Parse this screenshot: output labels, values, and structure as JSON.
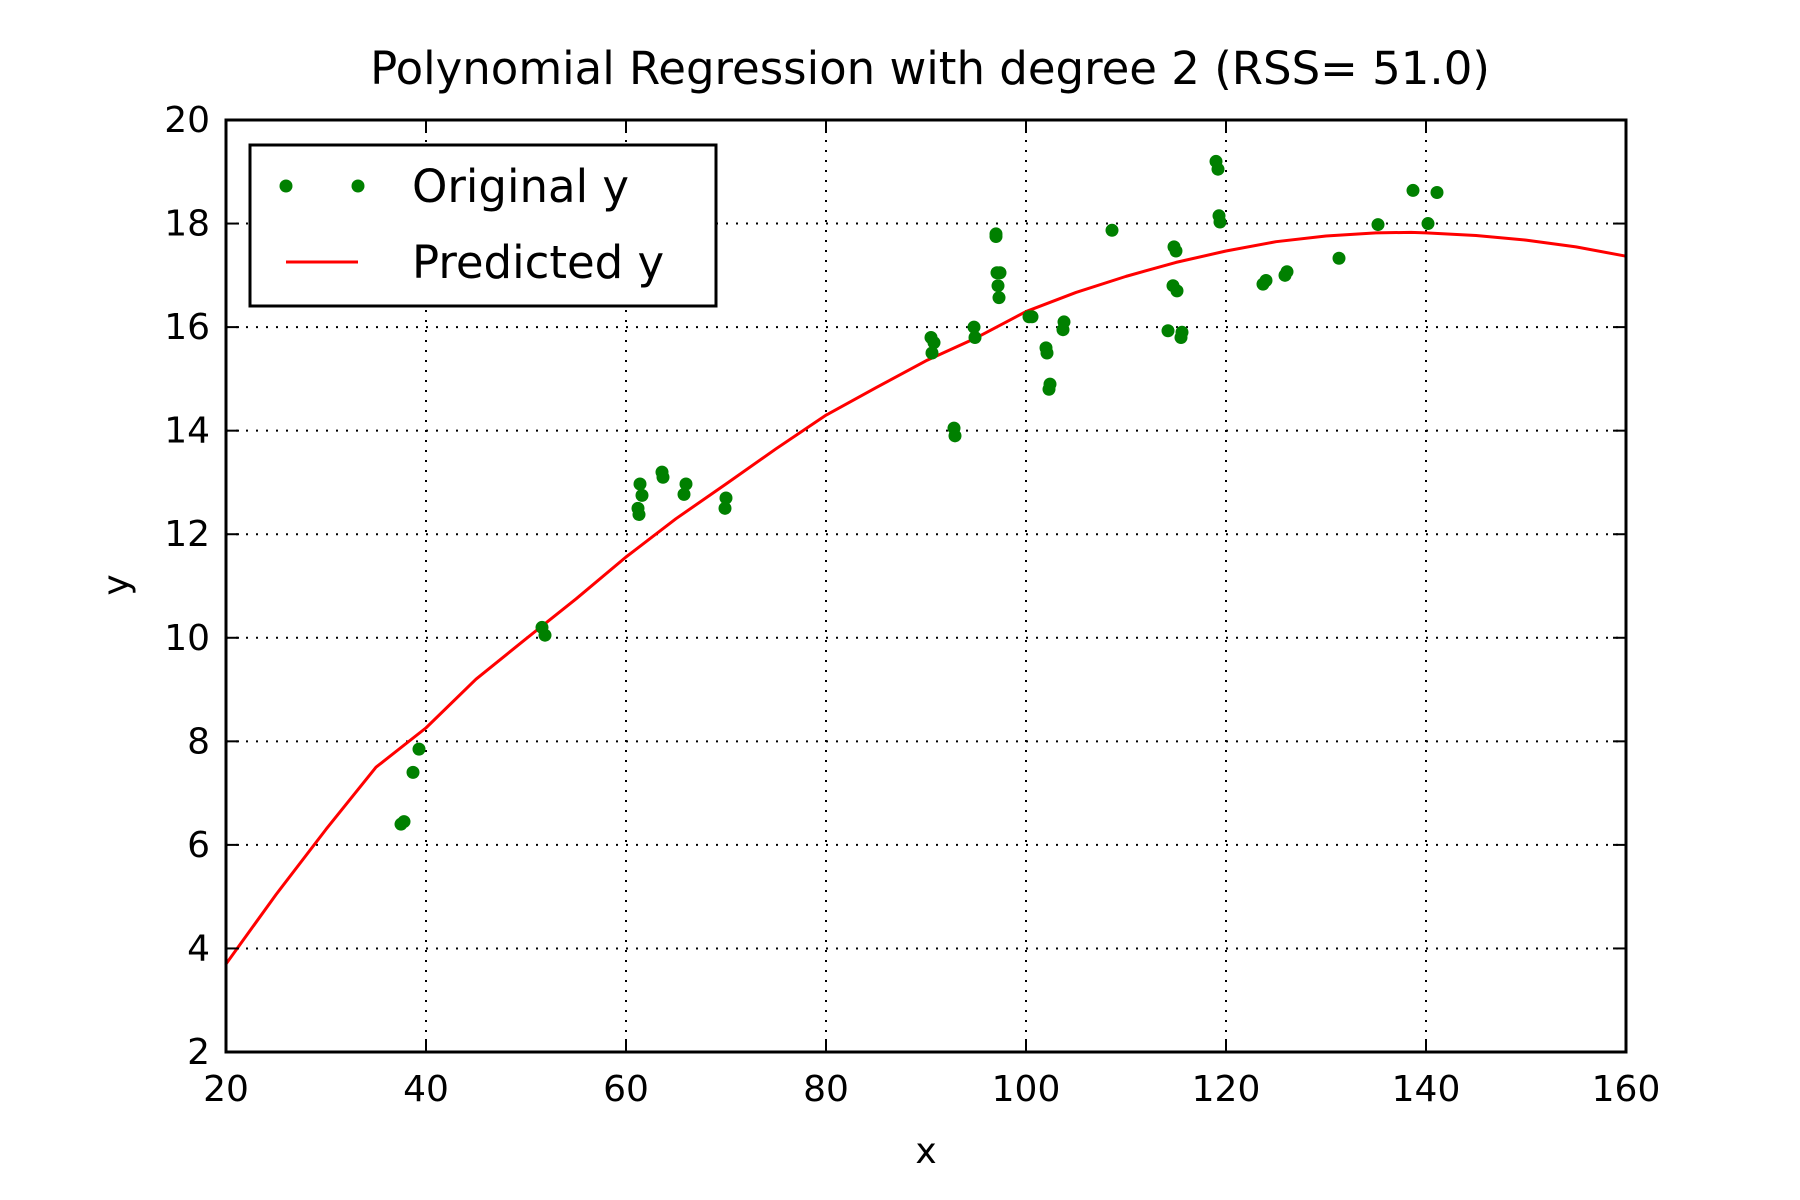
{
  "chart_data": {
    "type": "scatter",
    "title": "Polynomial Regression with degree 2 (RSS= 51.0)",
    "xlabel": "x",
    "ylabel": "y",
    "xlim": [
      20,
      160
    ],
    "ylim": [
      2,
      20
    ],
    "xticks": [
      "20",
      "40",
      "60",
      "80",
      "100",
      "120",
      "140",
      "160"
    ],
    "yticks": [
      "2",
      "4",
      "6",
      "8",
      "10",
      "12",
      "14",
      "16",
      "18",
      "20"
    ],
    "grid": true,
    "legend": {
      "position": "top-left",
      "entries": [
        "Original y",
        "Predicted y"
      ]
    },
    "series": [
      {
        "name": "Original y",
        "kind": "scatter",
        "color": "#008000",
        "points": [
          [
            37.5,
            6.4
          ],
          [
            37.8,
            6.45
          ],
          [
            38.7,
            7.4
          ],
          [
            39.3,
            7.85
          ],
          [
            51.6,
            10.2
          ],
          [
            51.9,
            10.05
          ],
          [
            61.2,
            12.5
          ],
          [
            61.3,
            12.38
          ],
          [
            61.4,
            12.97
          ],
          [
            61.6,
            12.75
          ],
          [
            63.6,
            13.2
          ],
          [
            63.7,
            13.1
          ],
          [
            65.8,
            12.77
          ],
          [
            66.0,
            12.97
          ],
          [
            69.9,
            12.5
          ],
          [
            70.0,
            12.7
          ],
          [
            90.5,
            15.8
          ],
          [
            90.6,
            15.5
          ],
          [
            90.8,
            15.7
          ],
          [
            92.8,
            14.05
          ],
          [
            92.9,
            13.9
          ],
          [
            94.8,
            16.0
          ],
          [
            94.9,
            15.8
          ],
          [
            97.0,
            17.8
          ],
          [
            97.1,
            17.05
          ],
          [
            97.2,
            16.8
          ],
          [
            97.3,
            16.57
          ],
          [
            97.4,
            17.05
          ],
          [
            97.0,
            17.75
          ],
          [
            100.3,
            16.2
          ],
          [
            100.6,
            16.2
          ],
          [
            102.0,
            15.6
          ],
          [
            102.1,
            15.5
          ],
          [
            102.3,
            14.8
          ],
          [
            102.4,
            14.9
          ],
          [
            103.7,
            15.95
          ],
          [
            103.8,
            16.1
          ],
          [
            108.6,
            17.87
          ],
          [
            114.2,
            15.93
          ],
          [
            114.7,
            16.8
          ],
          [
            114.8,
            17.55
          ],
          [
            115.0,
            17.47
          ],
          [
            115.1,
            16.7
          ],
          [
            115.5,
            15.8
          ],
          [
            115.6,
            15.9
          ],
          [
            119.0,
            19.2
          ],
          [
            119.2,
            19.05
          ],
          [
            119.3,
            18.15
          ],
          [
            119.4,
            18.03
          ],
          [
            123.7,
            16.83
          ],
          [
            124.0,
            16.9
          ],
          [
            125.9,
            17.0
          ],
          [
            126.1,
            17.07
          ],
          [
            131.3,
            17.33
          ],
          [
            135.2,
            17.98
          ],
          [
            138.7,
            18.64
          ],
          [
            140.2,
            18.0
          ],
          [
            141.1,
            18.6
          ]
        ]
      },
      {
        "name": "Predicted y",
        "kind": "line",
        "color": "#ff0000",
        "points": [
          [
            20,
            3.7
          ],
          [
            25,
            5.04
          ],
          [
            30,
            6.3
          ],
          [
            35,
            7.5
          ],
          [
            40,
            8.26
          ],
          [
            45,
            9.2
          ],
          [
            50,
            9.98
          ],
          [
            55,
            10.75
          ],
          [
            60,
            11.56
          ],
          [
            65,
            12.3
          ],
          [
            70,
            12.97
          ],
          [
            75,
            13.65
          ],
          [
            80,
            14.3
          ],
          [
            85,
            14.83
          ],
          [
            90,
            15.35
          ],
          [
            95,
            15.79
          ],
          [
            100,
            16.3
          ],
          [
            105,
            16.67
          ],
          [
            110,
            16.98
          ],
          [
            115,
            17.25
          ],
          [
            120,
            17.47
          ],
          [
            125,
            17.65
          ],
          [
            130,
            17.76
          ],
          [
            135,
            17.82
          ],
          [
            138.5,
            17.83
          ],
          [
            140,
            17.82
          ],
          [
            145,
            17.77
          ],
          [
            150,
            17.68
          ],
          [
            155,
            17.55
          ],
          [
            160,
            17.37
          ]
        ]
      }
    ]
  }
}
